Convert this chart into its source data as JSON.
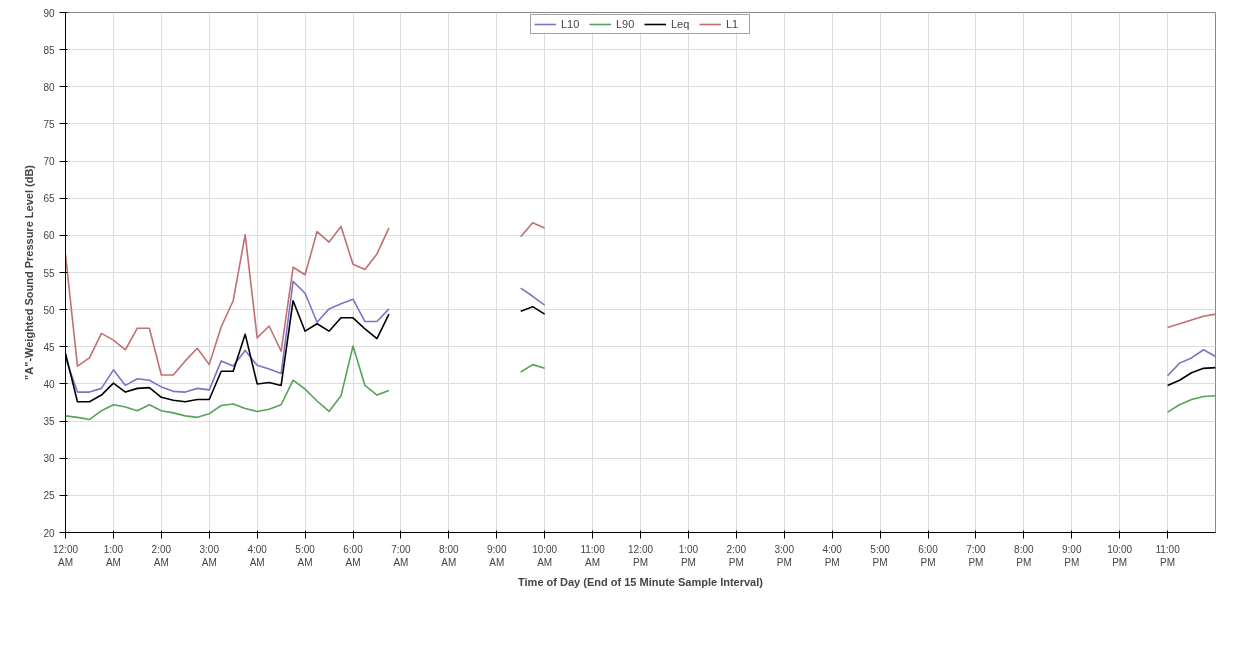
{
  "chart_data": {
    "type": "line",
    "xlabel": "Time of Day (End of 15 Minute Sample Interval)",
    "ylabel": "\"A\"-Weighted Sound Pressure Level (dB)",
    "x": [
      0,
      0.25,
      0.5,
      0.75,
      1,
      1.25,
      1.5,
      1.75,
      2,
      2.25,
      2.5,
      2.75,
      3,
      3.25,
      3.5,
      3.75,
      4,
      4.25,
      4.5,
      4.75,
      5,
      5.25,
      5.5,
      5.75,
      6,
      6.25,
      6.5,
      6.75,
      7,
      9.5,
      9.75,
      10,
      10.25,
      23,
      23.25,
      23.5,
      23.75,
      24
    ],
    "series": [
      {
        "name": "L10",
        "color": "#7b73c8",
        "values": [
          43.5,
          38.9,
          38.9,
          39.4,
          41.9,
          39.8,
          40.7,
          40.5,
          39.6,
          39.0,
          38.9,
          39.4,
          39.2,
          43.1,
          42.4,
          44.5,
          42.5,
          42.0,
          41.4,
          53.8,
          52.2,
          48.3,
          50.1,
          50.8,
          51.4,
          48.4,
          48.4,
          50.1,
          null,
          52.9,
          51.8,
          50.6,
          null,
          41.1,
          42.8,
          43.5,
          44.6,
          43.7
        ]
      },
      {
        "name": "L90",
        "color": "#5aa05a",
        "values": [
          35.7,
          35.5,
          35.2,
          36.4,
          37.2,
          36.9,
          36.4,
          37.2,
          36.4,
          36.1,
          35.7,
          35.5,
          36.0,
          37.1,
          37.3,
          36.7,
          36.3,
          36.6,
          37.2,
          40.5,
          39.3,
          37.7,
          36.3,
          38.4,
          45.1,
          39.8,
          38.5,
          39.1,
          null,
          41.6,
          42.6,
          42.1,
          null,
          36.2,
          37.2,
          37.9,
          38.3,
          38.4
        ]
      },
      {
        "name": "Leq",
        "color": "#000000",
        "values": [
          44.1,
          37.6,
          37.6,
          38.5,
          40.1,
          38.9,
          39.4,
          39.5,
          38.2,
          37.8,
          37.6,
          37.9,
          37.9,
          41.7,
          41.7,
          46.7,
          40.0,
          40.2,
          39.8,
          51.2,
          47.1,
          48.1,
          47.1,
          48.9,
          48.9,
          47.4,
          46.1,
          49.4,
          null,
          49.8,
          50.4,
          49.4,
          null,
          39.8,
          40.5,
          41.5,
          42.1,
          42.2
        ]
      },
      {
        "name": "L1",
        "color": "#c07070",
        "values": [
          57.4,
          42.4,
          43.5,
          46.8,
          45.9,
          44.6,
          47.5,
          47.5,
          41.2,
          41.2,
          43.1,
          44.8,
          42.6,
          47.7,
          51.2,
          60.1,
          46.2,
          47.8,
          44.4,
          55.7,
          54.7,
          60.5,
          59.1,
          61.2,
          56.1,
          55.4,
          57.5,
          61.0,
          null,
          59.8,
          61.7,
          61.0,
          null,
          47.6,
          48.1,
          48.6,
          49.1,
          49.4
        ]
      }
    ],
    "xlim": [
      0,
      24
    ],
    "xticks": [
      {
        "value": 0,
        "label": "12:00\nAM"
      },
      {
        "value": 1,
        "label": "1:00\nAM"
      },
      {
        "value": 2,
        "label": "2:00\nAM"
      },
      {
        "value": 3,
        "label": "3:00\nAM"
      },
      {
        "value": 4,
        "label": "4:00\nAM"
      },
      {
        "value": 5,
        "label": "5:00\nAM"
      },
      {
        "value": 6,
        "label": "6:00\nAM"
      },
      {
        "value": 7,
        "label": "7:00\nAM"
      },
      {
        "value": 8,
        "label": "8:00\nAM"
      },
      {
        "value": 9,
        "label": "9:00\nAM"
      },
      {
        "value": 10,
        "label": "10:00\nAM"
      },
      {
        "value": 11,
        "label": "11:00\nAM"
      },
      {
        "value": 12,
        "label": "12:00\nPM"
      },
      {
        "value": 13,
        "label": "1:00\nPM"
      },
      {
        "value": 14,
        "label": "2:00\nPM"
      },
      {
        "value": 15,
        "label": "3:00\nPM"
      },
      {
        "value": 16,
        "label": "4:00\nPM"
      },
      {
        "value": 17,
        "label": "5:00\nPM"
      },
      {
        "value": 18,
        "label": "6:00\nPM"
      },
      {
        "value": 19,
        "label": "7:00\nPM"
      },
      {
        "value": 20,
        "label": "8:00\nPM"
      },
      {
        "value": 21,
        "label": "9:00\nPM"
      },
      {
        "value": 22,
        "label": "10:00\nPM"
      },
      {
        "value": 23,
        "label": "11:00\nPM"
      }
    ],
    "ylim": [
      20,
      90
    ],
    "yticks": [
      20,
      25,
      30,
      35,
      40,
      45,
      50,
      55,
      60,
      65,
      70,
      75,
      80,
      85,
      90
    ],
    "grid": true,
    "legend": "top",
    "marker": "none",
    "line_style": "solid"
  }
}
